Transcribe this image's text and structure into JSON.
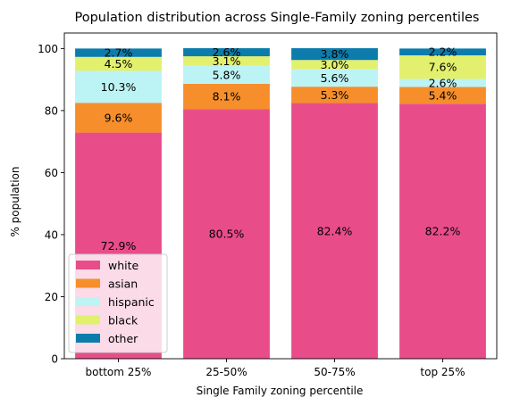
{
  "chart_data": {
    "type": "bar",
    "stacked": true,
    "title": "Population distribution across Single-Family zoning percentiles",
    "xlabel": "Single Family zoning percentile",
    "ylabel": "% population",
    "ylim": [
      0,
      105
    ],
    "yticks": [
      0,
      20,
      40,
      60,
      80,
      100
    ],
    "categories": [
      "bottom 25%",
      "25-50%",
      "50-75%",
      "top 25%"
    ],
    "series": [
      {
        "name": "white",
        "color": "#e84d8a",
        "values": [
          72.9,
          80.5,
          82.4,
          82.2
        ],
        "labels": [
          "72.9%",
          "80.5%",
          "82.4%",
          "82.2%"
        ]
      },
      {
        "name": "asian",
        "color": "#f68e2b",
        "values": [
          9.6,
          8.1,
          5.3,
          5.4
        ],
        "labels": [
          "9.6%",
          "8.1%",
          "5.3%",
          "5.4%"
        ]
      },
      {
        "name": "hispanic",
        "color": "#bcf3f5",
        "values": [
          10.3,
          5.8,
          5.6,
          2.6
        ],
        "labels": [
          "10.3%",
          "5.8%",
          "5.6%",
          "2.6%"
        ]
      },
      {
        "name": "black",
        "color": "#e2f06e",
        "values": [
          4.5,
          3.1,
          3.0,
          7.6
        ],
        "labels": [
          "4.5%",
          "3.1%",
          "3.0%",
          "7.6%"
        ]
      },
      {
        "name": "other",
        "color": "#0b7cab",
        "values": [
          2.7,
          2.6,
          3.8,
          2.2
        ],
        "labels": [
          "2.7%",
          "2.6%",
          "3.8%",
          "2.2%"
        ]
      }
    ],
    "legend_position": "lower-left",
    "grid": false
  }
}
